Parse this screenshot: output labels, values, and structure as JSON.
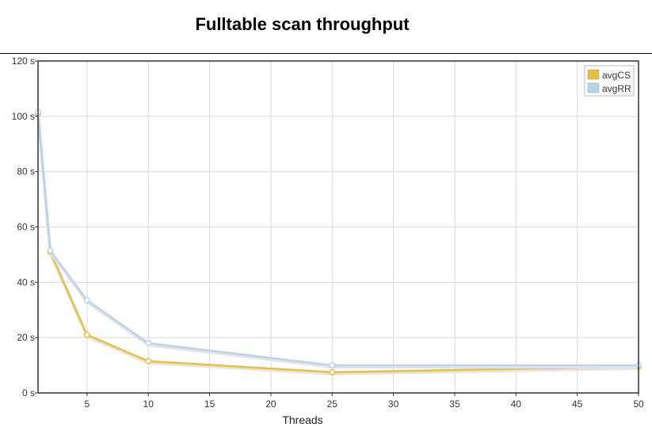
{
  "chart_data": {
    "type": "line",
    "title": "Fulltable scan throughput",
    "xlabel": "Threads",
    "ylabel": "",
    "xlim": [
      1,
      50
    ],
    "ylim": [
      0,
      120
    ],
    "xticks": [
      5,
      10,
      15,
      20,
      25,
      30,
      35,
      40,
      45,
      50
    ],
    "yticks": [
      0,
      20,
      40,
      60,
      80,
      100,
      120
    ],
    "ytick_suffix": " s",
    "grid": true,
    "legend_position": "top-right",
    "series": [
      {
        "name": "avgCS",
        "color": "#e8c040",
        "x": [
          1,
          2,
          5,
          10,
          25,
          50
        ],
        "y": [
          101,
          51,
          21,
          11.5,
          7.5,
          9.5
        ]
      },
      {
        "name": "avgRR",
        "color": "#b8d4ea",
        "x": [
          1,
          2,
          5,
          10,
          25,
          50
        ],
        "y": [
          101.5,
          51.5,
          33.5,
          18,
          10,
          10
        ]
      }
    ]
  }
}
